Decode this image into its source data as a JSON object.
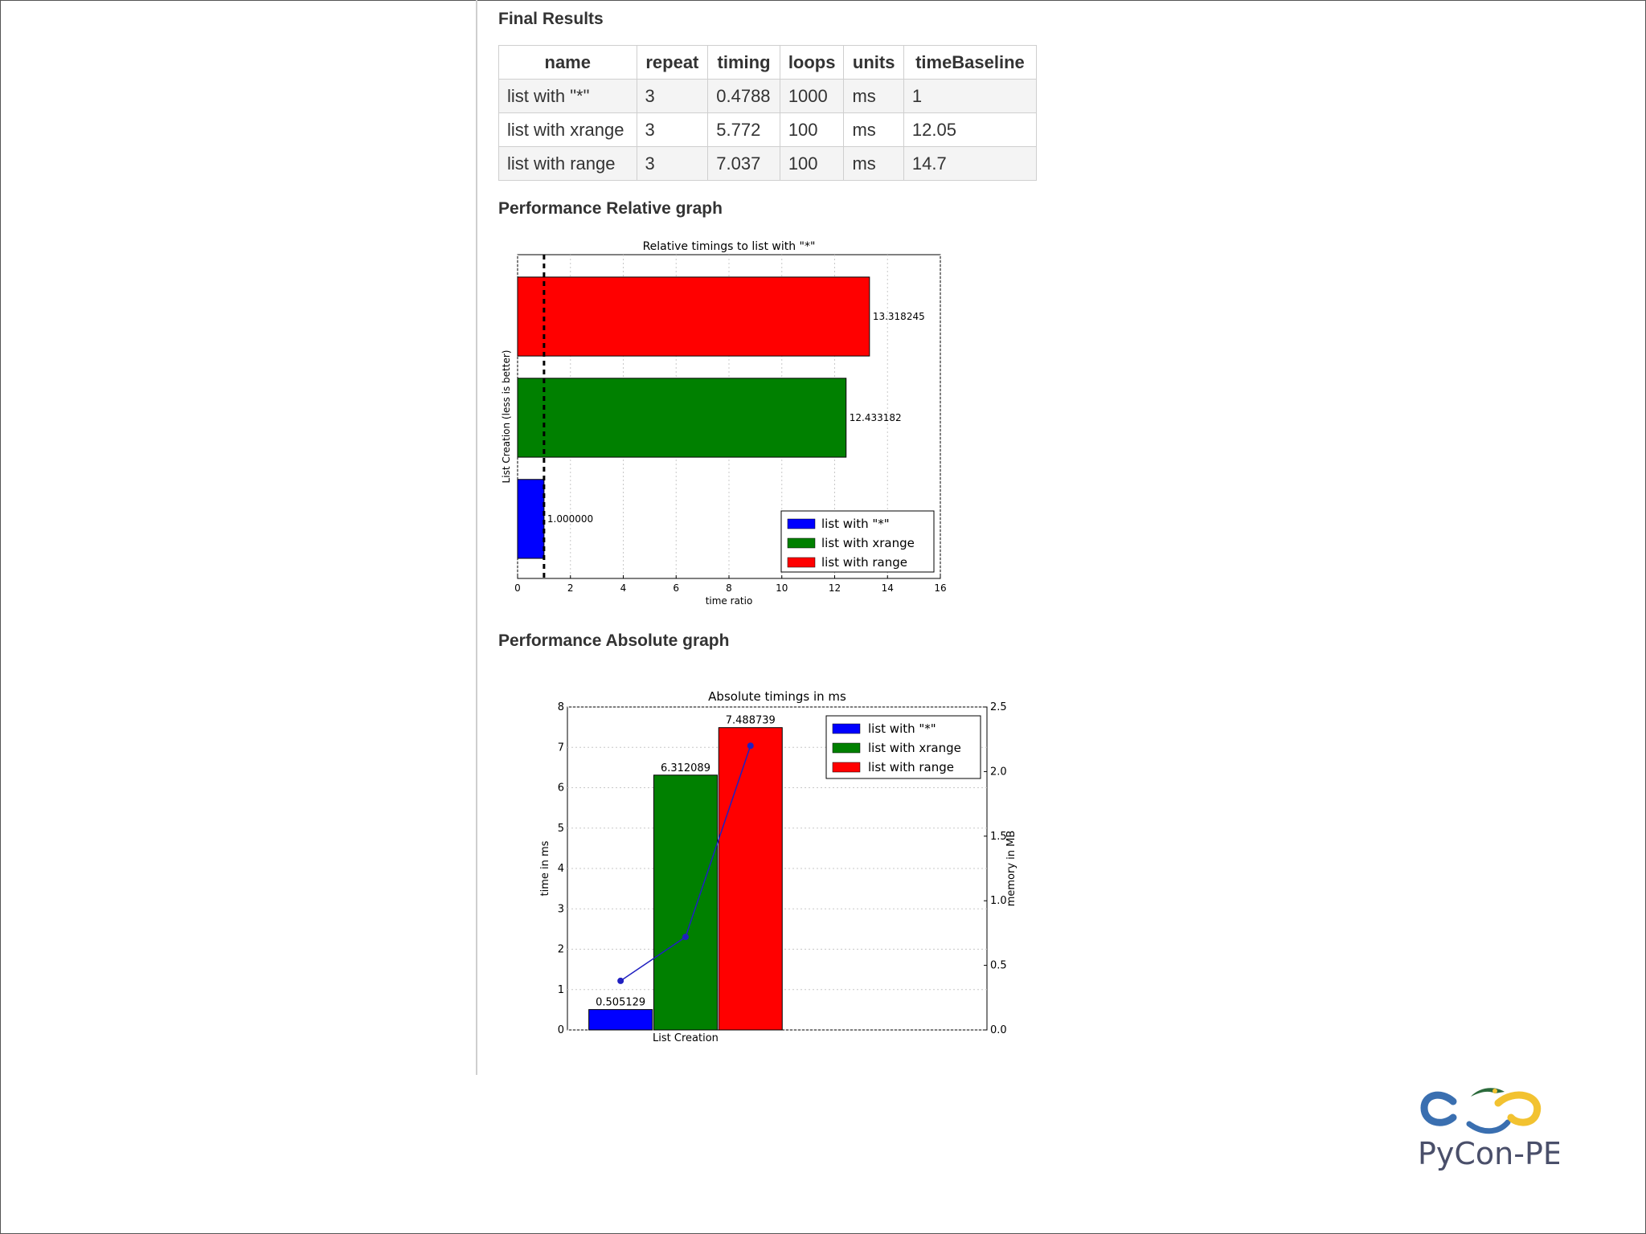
{
  "headings": {
    "final_results": "Final Results",
    "relative_graph": "Performance Relative graph",
    "absolute_graph": "Performance Absolute graph"
  },
  "results_table": {
    "columns": [
      "name",
      "repeat",
      "timing",
      "loops",
      "units",
      "timeBaseline"
    ],
    "rows": [
      [
        "list with \"*\"",
        "3",
        "0.4788",
        "1000",
        "ms",
        "1"
      ],
      [
        "list with xrange",
        "3",
        "5.772",
        "100",
        "ms",
        "12.05"
      ],
      [
        "list with range",
        "3",
        "7.037",
        "100",
        "ms",
        "14.7"
      ]
    ]
  },
  "colors": {
    "blue": "#0000ff",
    "green": "#008000",
    "red": "#ff0000",
    "line": "#2020c0"
  },
  "logo": {
    "text": "PyCon-PE"
  },
  "chart_data": [
    {
      "type": "bar",
      "orientation": "horizontal",
      "title": "Relative timings to list with \"*\"",
      "xlabel": "time ratio",
      "ylabel": "List Creation (less is better)",
      "xlim": [
        0,
        16
      ],
      "xticks": [
        0,
        2,
        4,
        6,
        8,
        10,
        12,
        14,
        16
      ],
      "reference_line": 1,
      "grid": true,
      "legend_position": "lower-right",
      "series": [
        {
          "name": "list with \"*\"",
          "value": 1.0,
          "label": "1.000000",
          "color": "#0000ff"
        },
        {
          "name": "list with xrange",
          "value": 12.433182,
          "label": "12.433182",
          "color": "#008000"
        },
        {
          "name": "list with range",
          "value": 13.318245,
          "label": "13.318245",
          "color": "#ff0000"
        }
      ]
    },
    {
      "type": "bar",
      "title": "Absolute timings in ms",
      "xlabel": "List Creation",
      "ylabel": "time in ms",
      "y2label": "memory in MB",
      "ylim": [
        0,
        8
      ],
      "yticks": [
        0,
        1,
        2,
        3,
        4,
        5,
        6,
        7,
        8
      ],
      "y2lim": [
        0,
        2.5
      ],
      "y2ticks": [
        "0.0",
        "0.5",
        "1.0",
        "1.5",
        "2.0",
        "2.5"
      ],
      "grid": true,
      "legend_position": "top-right",
      "series": [
        {
          "name": "list with \"*\"",
          "value": 0.505129,
          "label": "0.505129",
          "color": "#0000ff"
        },
        {
          "name": "list with xrange",
          "value": 6.312089,
          "label": "6.312089",
          "color": "#008000"
        },
        {
          "name": "list with range",
          "value": 7.488739,
          "label": "7.488739",
          "color": "#ff0000"
        }
      ],
      "memory_line": [
        0.38,
        0.72,
        2.2
      ]
    }
  ]
}
